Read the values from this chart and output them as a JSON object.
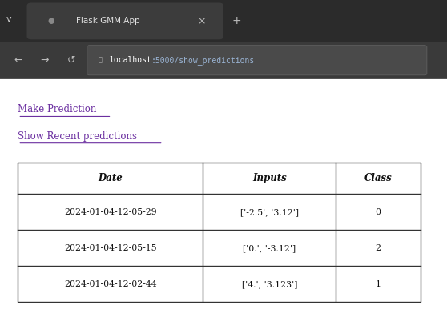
{
  "browser_tab_text": "Flask GMM App",
  "url_text": "localhost:5000/show_predictions",
  "link1": "Make Prediction",
  "link2": "Show Recent predictions",
  "table_headers": [
    "Date",
    "Inputs",
    "Class"
  ],
  "table_rows_raw": [
    [
      "2024-01-04-12-05-29",
      "['-2.5', '3.12']",
      "0"
    ],
    [
      "2024-01-04-12-05-15",
      "['0.', '-3.12']",
      "2"
    ],
    [
      "2024-01-04-12-02-44",
      "['4.', '3.123']",
      "1"
    ]
  ],
  "bg_page": "#ffffff",
  "link_color": "#6b2fa0"
}
